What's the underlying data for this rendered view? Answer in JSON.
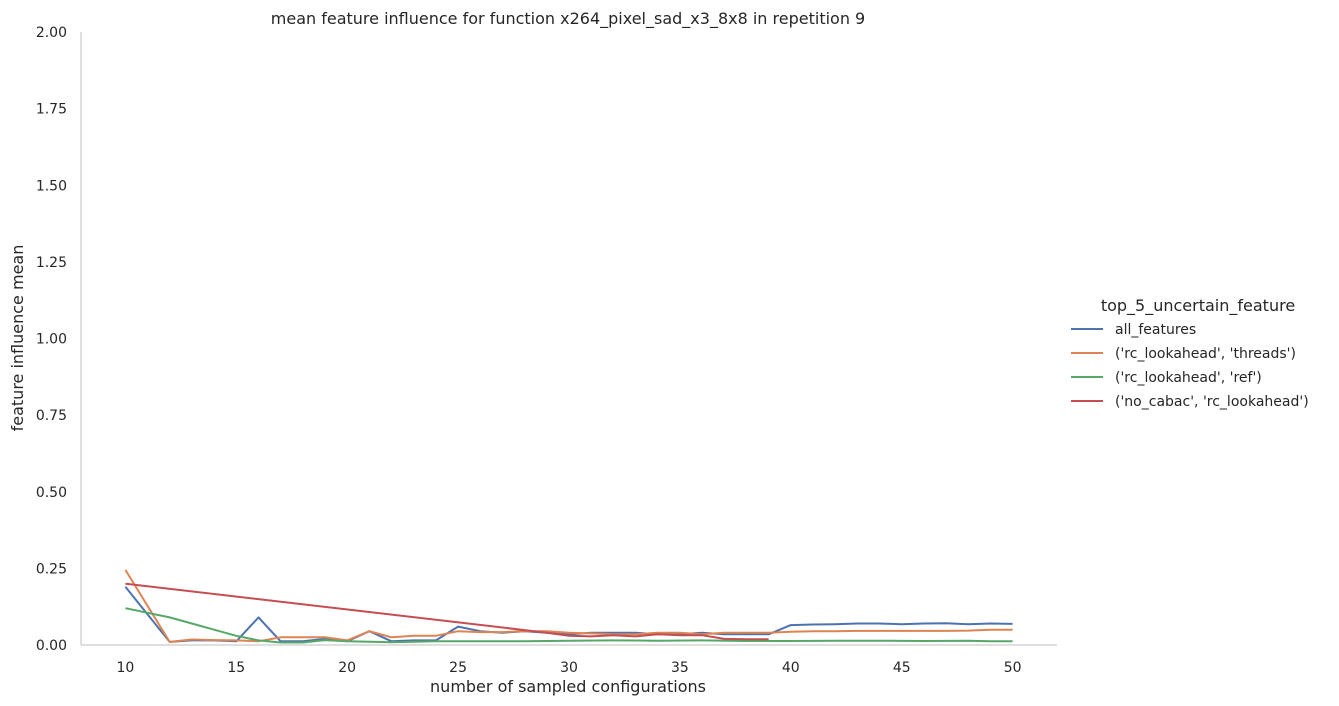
{
  "chart_data": {
    "type": "line",
    "title": "mean feature influence for function x264_pixel_sad_x3_8x8 in repetition 9",
    "xlabel": "number of sampled configurations",
    "ylabel": "feature influence mean",
    "xlim": [
      8,
      52
    ],
    "ylim": [
      0,
      2.0
    ],
    "xticks": [
      "10",
      "15",
      "20",
      "25",
      "30",
      "35",
      "40",
      "45",
      "50"
    ],
    "yticks": [
      "0.00",
      "0.25",
      "0.50",
      "0.75",
      "1.00",
      "1.25",
      "1.50",
      "1.75",
      "2.00"
    ],
    "grid": false,
    "legend": {
      "title": "top_5_uncertain_feature",
      "placement": "right"
    },
    "series": [
      {
        "name": "all_features",
        "color": "#4c72b0",
        "x": [
          10,
          12,
          13,
          14,
          15,
          16,
          17,
          18,
          19,
          20,
          21,
          22,
          23,
          24,
          25,
          26,
          27,
          28,
          29,
          30,
          31,
          32,
          33,
          34,
          35,
          36,
          37,
          38,
          39,
          40,
          41,
          42,
          43,
          44,
          45,
          46,
          47,
          48,
          49,
          50
        ],
        "y": [
          0.19,
          0.01,
          0.015,
          0.015,
          0.012,
          0.09,
          0.012,
          0.012,
          0.02,
          0.012,
          0.045,
          0.012,
          0.015,
          0.015,
          0.06,
          0.045,
          0.04,
          0.045,
          0.04,
          0.035,
          0.04,
          0.04,
          0.04,
          0.035,
          0.035,
          0.04,
          0.035,
          0.035,
          0.035,
          0.065,
          0.067,
          0.068,
          0.07,
          0.07,
          0.068,
          0.07,
          0.071,
          0.068,
          0.07,
          0.069
        ]
      },
      {
        "name": "('rc_lookahead', 'threads')",
        "color": "#dd8452",
        "x": [
          10,
          12,
          13,
          14,
          15,
          16,
          17,
          18,
          19,
          20,
          21,
          22,
          23,
          24,
          25,
          26,
          27,
          28,
          29,
          30,
          31,
          32,
          33,
          34,
          35,
          36,
          37,
          38,
          39,
          40,
          41,
          42,
          43,
          44,
          45,
          46,
          47,
          48,
          49,
          50
        ],
        "y": [
          0.245,
          0.01,
          0.018,
          0.016,
          0.015,
          0.012,
          0.025,
          0.025,
          0.025,
          0.015,
          0.045,
          0.025,
          0.03,
          0.03,
          0.045,
          0.042,
          0.042,
          0.045,
          0.045,
          0.04,
          0.038,
          0.035,
          0.035,
          0.04,
          0.04,
          0.035,
          0.04,
          0.04,
          0.04,
          0.043,
          0.045,
          0.045,
          0.046,
          0.046,
          0.046,
          0.046,
          0.046,
          0.047,
          0.05,
          0.05
        ]
      },
      {
        "name": "('rc_lookahead', 'ref')",
        "color": "#55a868",
        "x": [
          10,
          11,
          12,
          13,
          14,
          15,
          16,
          17,
          18,
          19,
          20,
          22,
          24,
          26,
          28,
          30,
          32,
          34,
          36,
          38,
          40,
          42,
          44,
          46,
          48,
          49,
          50
        ],
        "y": [
          0.12,
          0.105,
          0.09,
          0.07,
          0.05,
          0.03,
          0.015,
          0.008,
          0.008,
          0.016,
          0.012,
          0.009,
          0.012,
          0.012,
          0.012,
          0.014,
          0.015,
          0.014,
          0.015,
          0.013,
          0.013,
          0.014,
          0.014,
          0.013,
          0.014,
          0.012,
          0.012
        ]
      },
      {
        "name": "('no_cabac', 'rc_lookahead')",
        "color": "#c44e52",
        "x": [
          10,
          29,
          30,
          31,
          32,
          33,
          34,
          35,
          36,
          37,
          38,
          39
        ],
        "y": [
          0.2,
          0.04,
          0.03,
          0.028,
          0.032,
          0.028,
          0.035,
          0.032,
          0.032,
          0.02,
          0.019,
          0.019
        ]
      }
    ]
  }
}
